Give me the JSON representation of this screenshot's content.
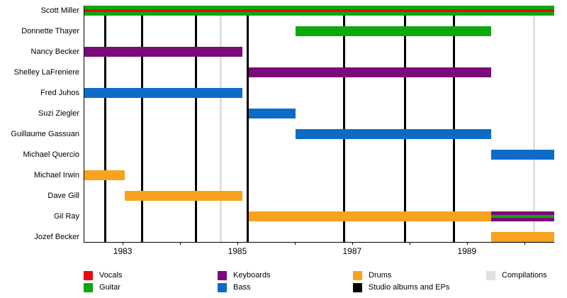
{
  "chart_data": {
    "type": "timeline",
    "description": "Band member timeline (Gantt-style) with instrument roles and release lines",
    "x_domain": [
      1982.32,
      1990.51
    ],
    "x_ticks": [
      1983,
      1984,
      1985,
      1986,
      1987,
      1988,
      1989,
      1990
    ],
    "x_tick_labels": [
      {
        "year": 1983,
        "label": "1983"
      },
      {
        "year": 1985,
        "label": "1985"
      },
      {
        "year": 1987,
        "label": "1987"
      },
      {
        "year": 1989,
        "label": "1989"
      }
    ],
    "colors": {
      "vocals": "#e60d0d",
      "guitar": "#0ca80c",
      "keyboards": "#7a0b7a",
      "bass": "#0d6bc8",
      "drums": "#f9a21f",
      "studio_albums": "#000000",
      "compilations": "#e0e0e0"
    },
    "members": [
      {
        "name": "Scott Miller",
        "segments": [
          {
            "start": 1982.32,
            "end": 1990.51,
            "stripes": [
              "guitar",
              "vocals",
              "guitar"
            ]
          }
        ]
      },
      {
        "name": "Donnette Thayer",
        "segments": [
          {
            "start": 1986.0,
            "end": 1989.41,
            "stripes": [
              "guitar"
            ]
          }
        ]
      },
      {
        "name": "Nancy Becker",
        "segments": [
          {
            "start": 1982.32,
            "end": 1985.08,
            "stripes": [
              "keyboards"
            ]
          }
        ]
      },
      {
        "name": "Shelley LaFreniere",
        "segments": [
          {
            "start": 1985.19,
            "end": 1989.41,
            "stripes": [
              "keyboards"
            ]
          }
        ]
      },
      {
        "name": "Fred Juhos",
        "segments": [
          {
            "start": 1982.32,
            "end": 1985.08,
            "stripes": [
              "bass"
            ]
          }
        ]
      },
      {
        "name": "Suzi Ziegler",
        "segments": [
          {
            "start": 1985.19,
            "end": 1986.0,
            "stripes": [
              "bass"
            ]
          }
        ]
      },
      {
        "name": "Guillaume Gassuan",
        "segments": [
          {
            "start": 1986.0,
            "end": 1989.41,
            "stripes": [
              "bass"
            ]
          }
        ]
      },
      {
        "name": "Michael Quercio",
        "segments": [
          {
            "start": 1989.41,
            "end": 1990.51,
            "stripes": [
              "bass"
            ]
          }
        ]
      },
      {
        "name": "Michael Irwin",
        "segments": [
          {
            "start": 1982.32,
            "end": 1983.02,
            "stripes": [
              "drums"
            ]
          }
        ]
      },
      {
        "name": "Dave Gill",
        "segments": [
          {
            "start": 1983.02,
            "end": 1985.08,
            "stripes": [
              "drums"
            ]
          }
        ]
      },
      {
        "name": "Gil Ray",
        "segments": [
          {
            "start": 1985.19,
            "end": 1989.41,
            "stripes": [
              "drums"
            ]
          },
          {
            "start": 1989.41,
            "end": 1990.51,
            "stripes": [
              "keyboards",
              "guitar",
              "keyboards"
            ]
          }
        ]
      },
      {
        "name": "Jozef Becker",
        "segments": [
          {
            "start": 1989.41,
            "end": 1990.51,
            "stripes": [
              "drums"
            ]
          }
        ]
      }
    ],
    "events": {
      "studio_albums_and_eps": [
        1982.68,
        1983.32,
        1984.26,
        1985.16,
        1986.84,
        1987.9,
        1988.75
      ],
      "compilations": [
        1984.69,
        1990.15
      ]
    },
    "legend": {
      "items": [
        {
          "label": "Vocals",
          "color_key": "vocals",
          "col": 0,
          "row": 0
        },
        {
          "label": "Guitar",
          "color_key": "guitar",
          "col": 0,
          "row": 1
        },
        {
          "label": "Keyboards",
          "color_key": "keyboards",
          "col": 1,
          "row": 0
        },
        {
          "label": "Bass",
          "color_key": "bass",
          "col": 1,
          "row": 1
        },
        {
          "label": "Drums",
          "color_key": "drums",
          "col": 2,
          "row": 0
        },
        {
          "label": "Studio albums and EPs",
          "color_key": "studio_albums",
          "col": 2,
          "row": 1
        },
        {
          "label": "Compilations",
          "color_key": "compilations",
          "col": 3,
          "row": 0
        }
      ]
    }
  }
}
